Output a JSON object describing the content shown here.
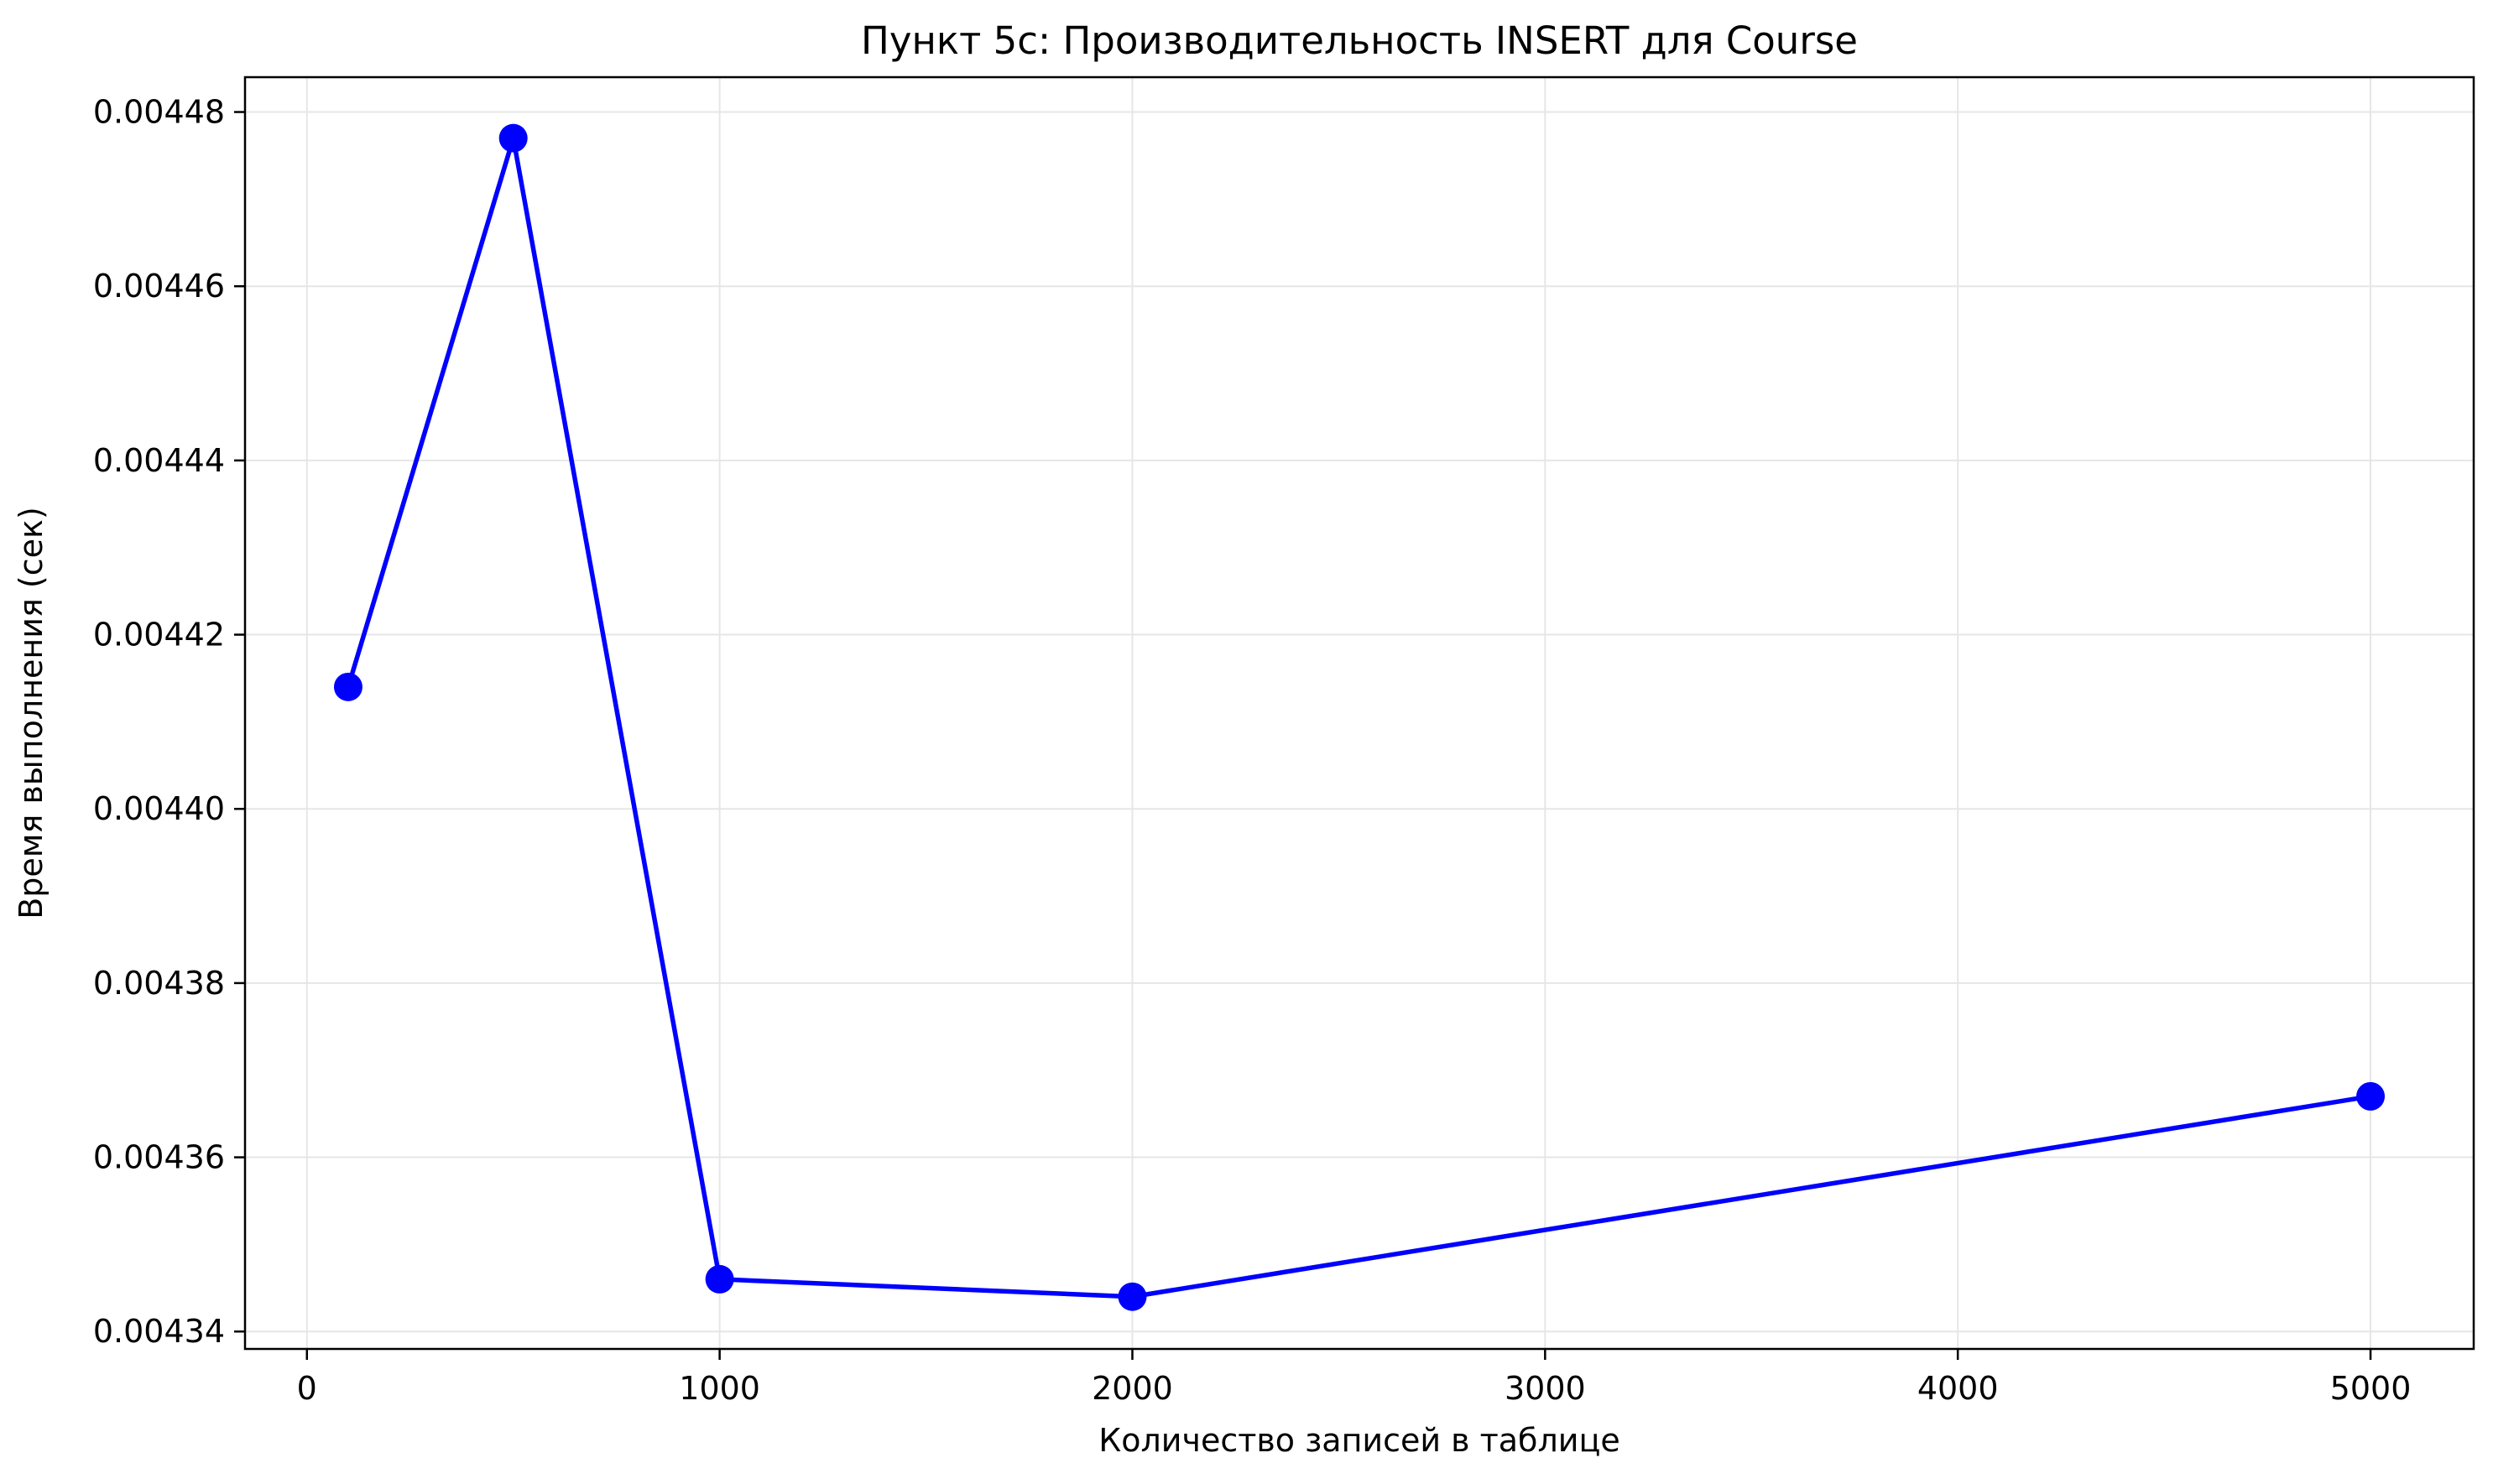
{
  "chart_data": {
    "type": "line",
    "title": "Пункт 5c: Производительность INSERT для Course",
    "xlabel": "Количество записей в таблице",
    "ylabel": "Время выполнения (сек)",
    "xlim": [
      -150,
      5250
    ],
    "ylim": [
      0.004338,
      0.004484
    ],
    "x_ticks": [
      0,
      1000,
      2000,
      3000,
      4000,
      5000
    ],
    "x_tick_labels": [
      "0",
      "1000",
      "2000",
      "3000",
      "4000",
      "5000"
    ],
    "y_ticks": [
      0.00434,
      0.00436,
      0.00438,
      0.0044,
      0.00442,
      0.00444,
      0.00446,
      0.00448
    ],
    "y_tick_labels": [
      "0.00434",
      "0.00436",
      "0.00438",
      "0.00440",
      "0.00442",
      "0.00444",
      "0.00446",
      "0.00448"
    ],
    "grid": true,
    "colors": {
      "line": "#0000ff",
      "marker": "#0000ff",
      "grid": "#e6e6e6",
      "axis": "#000000"
    },
    "series": [
      {
        "x": [
          100,
          500,
          1000,
          2000,
          5000
        ],
        "y": [
          0.004414,
          0.004477,
          0.004346,
          0.004344,
          0.004367
        ]
      }
    ]
  }
}
